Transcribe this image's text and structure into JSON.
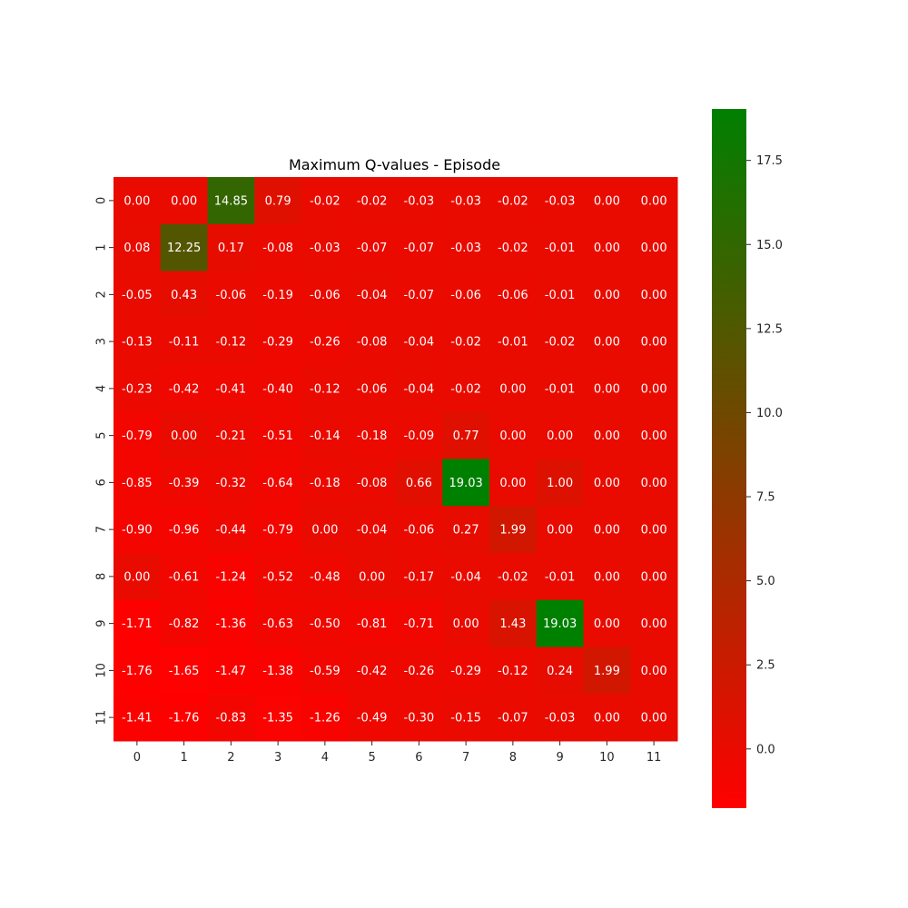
{
  "chart_data": {
    "type": "heatmap",
    "title": "Maximum Q-values - Episode",
    "x_tick_labels": [
      "0",
      "1",
      "2",
      "3",
      "4",
      "5",
      "6",
      "7",
      "8",
      "9",
      "10",
      "11"
    ],
    "y_tick_labels": [
      "0",
      "1",
      "2",
      "3",
      "4",
      "5",
      "6",
      "7",
      "8",
      "9",
      "10",
      "11"
    ],
    "values": [
      [
        0.0,
        0.0,
        14.85,
        0.79,
        -0.02,
        -0.02,
        -0.03,
        -0.03,
        -0.02,
        -0.03,
        0.0,
        0.0
      ],
      [
        0.08,
        12.25,
        0.17,
        -0.08,
        -0.03,
        -0.07,
        -0.07,
        -0.03,
        -0.02,
        -0.01,
        0.0,
        0.0
      ],
      [
        -0.05,
        0.43,
        -0.06,
        -0.19,
        -0.06,
        -0.04,
        -0.07,
        -0.06,
        -0.06,
        -0.01,
        0.0,
        0.0
      ],
      [
        -0.13,
        -0.11,
        -0.12,
        -0.29,
        -0.26,
        -0.08,
        -0.04,
        -0.02,
        -0.01,
        -0.02,
        0.0,
        0.0
      ],
      [
        -0.23,
        -0.42,
        -0.41,
        -0.4,
        -0.12,
        -0.06,
        -0.04,
        -0.02,
        0.0,
        -0.01,
        0.0,
        0.0
      ],
      [
        -0.79,
        0.0,
        -0.21,
        -0.51,
        -0.14,
        -0.18,
        -0.09,
        0.77,
        0.0,
        0.0,
        0.0,
        0.0
      ],
      [
        -0.85,
        -0.39,
        -0.32,
        -0.64,
        -0.18,
        -0.08,
        0.66,
        19.03,
        0.0,
        1.0,
        0.0,
        0.0
      ],
      [
        -0.9,
        -0.96,
        -0.44,
        -0.79,
        0.0,
        -0.04,
        -0.06,
        0.27,
        1.99,
        0.0,
        0.0,
        0.0
      ],
      [
        0.0,
        -0.61,
        -1.24,
        -0.52,
        -0.48,
        0.0,
        -0.17,
        -0.04,
        -0.02,
        -0.01,
        0.0,
        0.0
      ],
      [
        -1.71,
        -0.82,
        -1.36,
        -0.63,
        -0.5,
        -0.81,
        -0.71,
        0.0,
        1.43,
        19.03,
        0.0,
        0.0
      ],
      [
        -1.76,
        -1.65,
        -1.47,
        -1.38,
        -0.59,
        -0.42,
        -0.26,
        -0.29,
        -0.12,
        0.24,
        1.99,
        0.0
      ],
      [
        -1.41,
        -1.76,
        -0.83,
        -1.35,
        -1.26,
        -0.49,
        -0.3,
        -0.15,
        -0.07,
        -0.03,
        0.0,
        0.0
      ]
    ],
    "value_format_decimals": 2,
    "colormap": {
      "low": "#ff0000",
      "high": "#008000"
    },
    "color_range": [
      -1.76,
      19.03
    ],
    "colorbar": {
      "ticks": [
        0.0,
        2.5,
        5.0,
        7.5,
        10.0,
        12.5,
        15.0,
        17.5
      ],
      "tick_labels": [
        "0.0",
        "2.5",
        "5.0",
        "7.5",
        "10.0",
        "12.5",
        "15.0",
        "17.5"
      ]
    }
  }
}
